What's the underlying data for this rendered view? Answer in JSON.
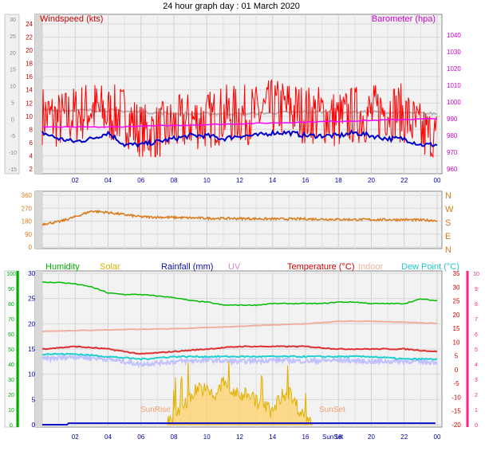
{
  "title": "24 hour graph day : 01 March 2020",
  "x_ticks": [
    "02",
    "04",
    "06",
    "08",
    "10",
    "12",
    "14",
    "16",
    "18",
    "20",
    "22",
    "00"
  ],
  "x_range": [
    0,
    24
  ],
  "colors": {
    "wind": "#ff0000",
    "gust": "#cc0000",
    "avg": "#0000cc",
    "baro": "#ff00ff",
    "greyline": "#b4b4b4",
    "winddir": "#d97a1a",
    "humidity": "#00aa00",
    "solar": "#d4b000",
    "rain": "#1010cc",
    "uv": "#d08cd0",
    "temperature": "#cc0000",
    "indoor": "#f0b0a0",
    "dewpoint": "#20d0d0",
    "sunrise_text": "#f0a070",
    "axis_blue": "#0000aa",
    "pink_axis": "#ff2288"
  },
  "panel1": {
    "left_label": "Windspeed (kts)",
    "right_label": "Barometer (hpa)",
    "left_ticks_inner": [
      "24",
      "22",
      "20",
      "18",
      "16",
      "14",
      "12",
      "10",
      "8",
      "6",
      "4",
      "2"
    ],
    "left_ticks_outer": [
      "30",
      "25",
      "20",
      "15",
      "10",
      "5",
      "0",
      "-5",
      "-10",
      "-15"
    ],
    "right_ticks": [
      "1040",
      "1030",
      "1020",
      "1010",
      "1000",
      "990",
      "980",
      "970",
      "960"
    ]
  },
  "panel2": {
    "left_ticks": [
      "360",
      "270",
      "180",
      "90",
      "0"
    ],
    "dir_labels": [
      "N",
      "W",
      "S",
      "E",
      "N"
    ]
  },
  "panel3": {
    "legend": {
      "humidity": "Humidity",
      "solar": "Solar",
      "rain": "Rainfall (mm)",
      "uv": "UV",
      "temperature": "Temperature (°C)",
      "indoor": "Indoor",
      "dewpoint": "Dew Point (°C)"
    },
    "hum_ticks": [
      "100",
      "90",
      "80",
      "70",
      "60",
      "50",
      "40",
      "30",
      "20",
      "10",
      "0"
    ],
    "inner_ticks": [
      "30",
      "25",
      "20",
      "15",
      "10",
      "5",
      "0"
    ],
    "right_ticks": [
      "35",
      "30",
      "25",
      "20",
      "15",
      "10",
      "5",
      "0",
      "-5",
      "-10",
      "-15",
      "-20"
    ],
    "pink_ticks": [
      "10",
      "9",
      "8",
      "7",
      "6",
      "5",
      "4",
      "3",
      "2",
      "1",
      "0"
    ],
    "sunrise": "SunRise",
    "sunset": "SunSet",
    "bottom_sun": "SunSet"
  },
  "chart_data": [
    {
      "type": "line",
      "series": [
        {
          "name": "Windspeed (kts)",
          "x": [
            0,
            1,
            2,
            3,
            4,
            5,
            6,
            7,
            8,
            9,
            10,
            11,
            12,
            13,
            14,
            15,
            16,
            17,
            18,
            19,
            20,
            21,
            22,
            23,
            23.9
          ],
          "y": [
            9,
            8,
            9,
            10,
            9,
            9,
            6,
            6,
            7,
            8,
            8,
            9,
            9,
            9,
            10,
            10,
            9,
            9,
            8,
            9,
            9,
            10,
            9,
            6,
            5
          ]
        },
        {
          "name": "",
          "x": [
            0,
            1,
            2,
            3,
            4,
            5,
            6,
            7,
            8,
            9,
            10,
            11,
            12,
            13,
            14,
            15,
            16,
            17,
            18,
            19,
            20,
            21,
            22,
            23,
            23.9
          ],
          "y": [
            6,
            5,
            4.5,
            5,
            6,
            4,
            4,
            4.5,
            5,
            5.5,
            5.5,
            5,
            5.5,
            5.5,
            6,
            6,
            5.5,
            5.5,
            5.5,
            6,
            5.5,
            5,
            5,
            4,
            4
          ]
        },
        {
          "name": "Barometer (hpa)",
          "x": [
            0,
            4,
            8,
            12,
            16,
            20,
            23.9
          ],
          "y": [
            985,
            985,
            986,
            987,
            988,
            989,
            990
          ]
        },
        {
          "name": "",
          "x": [
            0,
            4,
            8,
            12,
            16,
            20,
            23.9
          ],
          "y": [
            995,
            995,
            993,
            993,
            994,
            994,
            993
          ]
        }
      ]
    },
    {
      "type": "line",
      "series": [
        {
          "name": "",
          "x": [
            0,
            1,
            2,
            3,
            4,
            5,
            6,
            8,
            10,
            12,
            14,
            16,
            18,
            20,
            22,
            23.9
          ],
          "y": [
            160,
            175,
            210,
            250,
            240,
            225,
            210,
            205,
            200,
            198,
            195,
            195,
            192,
            190,
            190,
            185
          ]
        }
      ],
      "ylim": [
        0,
        360
      ]
    },
    {
      "type": "line",
      "series": [
        {
          "name": "Humidity",
          "x": [
            0,
            1,
            2,
            3,
            4,
            5,
            6,
            7,
            8,
            9,
            10,
            11,
            12,
            13,
            14,
            15,
            16,
            17,
            18,
            19,
            20,
            21,
            22,
            23,
            23.9
          ],
          "y": [
            94,
            94,
            93,
            91,
            87,
            86,
            86,
            85,
            84,
            82,
            81,
            79,
            79,
            79,
            80,
            80,
            80,
            80,
            81,
            81,
            80,
            80,
            80,
            83,
            82
          ]
        },
        {
          "name": "Temperature (°C)",
          "x": [
            0,
            2,
            4,
            6,
            8,
            10,
            12,
            14,
            16,
            18,
            20,
            22,
            23.9
          ],
          "y": [
            15,
            15.5,
            15,
            14,
            14.5,
            15,
            15.5,
            15.5,
            15.5,
            15,
            15,
            15,
            14.5
          ]
        },
        {
          "name": "Indoor",
          "x": [
            0,
            4,
            8,
            12,
            16,
            18,
            20,
            22,
            23.9
          ],
          "y": [
            18.5,
            18.8,
            19,
            19.5,
            20,
            20.5,
            20.5,
            20.3,
            20.1
          ]
        },
        {
          "name": "Dew Point (°C)",
          "x": [
            0,
            2,
            4,
            6,
            8,
            10,
            12,
            14,
            16,
            18,
            20,
            22,
            23.9
          ],
          "y": [
            14,
            14,
            13.5,
            13,
            13.5,
            13.5,
            13.5,
            13.5,
            13.5,
            13.5,
            13.5,
            13,
            13
          ]
        },
        {
          "name": "UV",
          "x": [
            0,
            2,
            4,
            6,
            8,
            10,
            12,
            14,
            16,
            18,
            20,
            22,
            23.9
          ],
          "y": [
            13,
            13.5,
            13,
            12,
            12.5,
            12.8,
            12.5,
            12.8,
            12.6,
            12.8,
            12.5,
            12.6,
            12.4
          ]
        },
        {
          "name": "Solar",
          "x": [
            7.6,
            8,
            8.5,
            9,
            9.5,
            10,
            10.5,
            11,
            11.5,
            12,
            12.5,
            13,
            13.5,
            14,
            14.5,
            15,
            15.5,
            16,
            16.4
          ],
          "y": [
            0,
            1,
            3,
            5,
            7,
            6,
            5,
            8,
            6,
            5,
            6,
            4,
            3,
            2,
            5,
            6,
            3,
            1,
            0
          ]
        },
        {
          "name": "Rainfall (mm)",
          "x": [
            0,
            1.5,
            1.6,
            23.9
          ],
          "y": [
            0,
            0,
            0.3,
            0.3
          ]
        }
      ],
      "ylim": [
        0,
        30
      ]
    }
  ]
}
